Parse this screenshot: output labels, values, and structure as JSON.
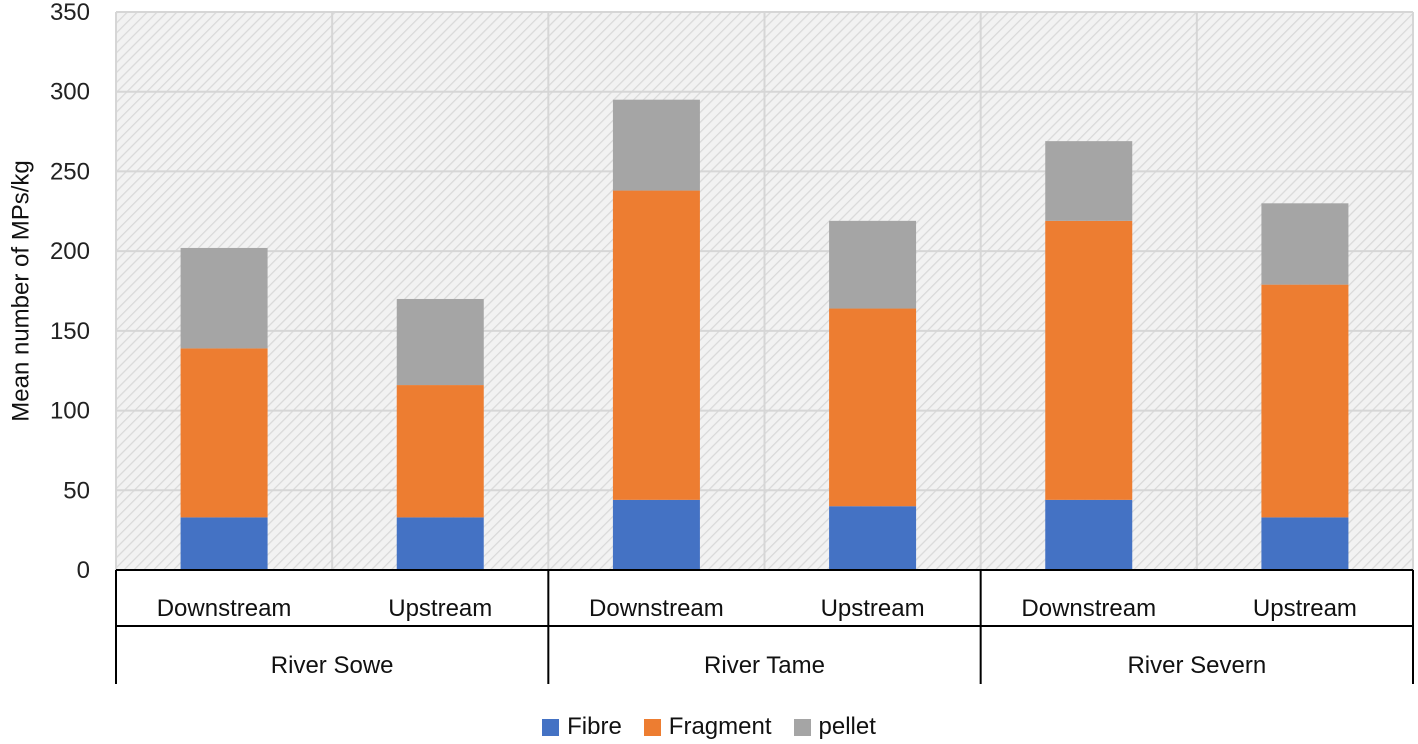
{
  "chart_data": {
    "type": "bar",
    "stacked": true,
    "ylabel": "Mean number of MPs/kg",
    "ylim": [
      0,
      350
    ],
    "yticks": [
      0,
      50,
      100,
      150,
      200,
      250,
      300,
      350
    ],
    "groups": [
      {
        "name": "River Sowe",
        "categories": [
          "Downstream",
          "Upstream"
        ]
      },
      {
        "name": "River Tame",
        "categories": [
          "Downstream",
          "Upstream"
        ]
      },
      {
        "name": "River Severn",
        "categories": [
          "Downstream",
          "Upstream"
        ]
      }
    ],
    "series": [
      {
        "name": "Fibre",
        "color": "#4472C4",
        "values": [
          33,
          33,
          44,
          40,
          44,
          33
        ]
      },
      {
        "name": "Fragment",
        "color": "#ED7D31",
        "values": [
          106,
          83,
          194,
          124,
          175,
          146
        ]
      },
      {
        "name": "pellet",
        "color": "#A5A5A5",
        "values": [
          63,
          54,
          57,
          55,
          50,
          51
        ]
      }
    ],
    "grid": true,
    "legend_position": "bottom"
  }
}
